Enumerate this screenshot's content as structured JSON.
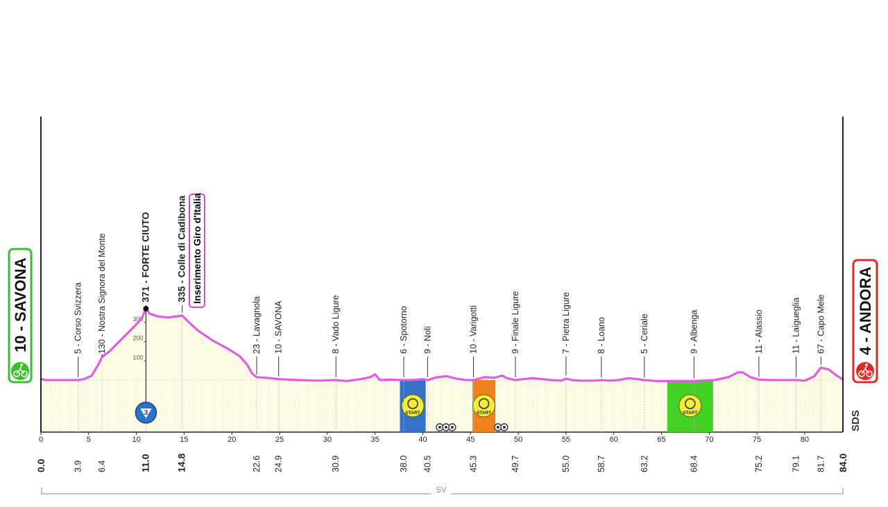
{
  "colors": {
    "profile": "#e25ce3",
    "fill": "#fbfbe6",
    "start_green": "#3cbf2e",
    "finish_red": "#e3282a",
    "sprint_blue": "#3471c8",
    "sprint_orange": "#f0821e",
    "sprint_green": "#43d124",
    "gpm_blue": "#2c73c8"
  },
  "start": {
    "label": "10 - SAVONA",
    "km_label": "0.0"
  },
  "finish": {
    "label": "4 - ANDORA",
    "km_label": "84.0"
  },
  "brand": "SDS",
  "region": "SV",
  "highlight_box": {
    "label": "Inserimento Giro d'Italia"
  },
  "gpm": {
    "category": "3"
  },
  "chart_data": {
    "type": "area",
    "xlim": [
      0,
      84
    ],
    "ylim": [
      0,
      600
    ],
    "x_ticks": [
      "0",
      "5",
      "10",
      "15",
      "20",
      "25",
      "30",
      "35",
      "40",
      "45",
      "50",
      "55",
      "60",
      "65",
      "70",
      "75",
      "80"
    ],
    "y_ticks": [
      "100",
      "200",
      "300"
    ],
    "profile": [
      [
        0,
        5
      ],
      [
        0.5,
        0
      ],
      [
        2,
        0
      ],
      [
        3.9,
        0
      ],
      [
        4.5,
        5
      ],
      [
        5.3,
        22
      ],
      [
        6.0,
        80
      ],
      [
        6.4,
        120
      ],
      [
        7.2,
        150
      ],
      [
        8.0,
        190
      ],
      [
        9.0,
        240
      ],
      [
        10.0,
        290
      ],
      [
        10.6,
        325
      ],
      [
        11.0,
        371
      ],
      [
        11.4,
        345
      ],
      [
        12.3,
        330
      ],
      [
        13.3,
        325
      ],
      [
        14.8,
        335
      ],
      [
        15.5,
        300
      ],
      [
        16.5,
        255
      ],
      [
        18.0,
        205
      ],
      [
        19.5,
        165
      ],
      [
        20.8,
        125
      ],
      [
        21.6,
        80
      ],
      [
        22.1,
        35
      ],
      [
        22.6,
        15
      ],
      [
        24.0,
        10
      ],
      [
        24.9,
        5
      ],
      [
        27.0,
        0
      ],
      [
        29.0,
        -3
      ],
      [
        30.9,
        0
      ],
      [
        32.0,
        -5
      ],
      [
        33.5,
        5
      ],
      [
        34.5,
        15
      ],
      [
        35.0,
        30
      ],
      [
        35.5,
        0
      ],
      [
        36.5,
        2
      ],
      [
        38.0,
        0
      ],
      [
        39.0,
        0
      ],
      [
        40.0,
        5
      ],
      [
        40.5,
        0
      ],
      [
        41.5,
        15
      ],
      [
        42.5,
        20
      ],
      [
        43.5,
        8
      ],
      [
        44.5,
        0
      ],
      [
        45.3,
        0
      ],
      [
        46.5,
        15
      ],
      [
        47.5,
        12
      ],
      [
        48.3,
        23
      ],
      [
        48.8,
        10
      ],
      [
        49.7,
        0
      ],
      [
        50.5,
        5
      ],
      [
        51.5,
        10
      ],
      [
        52.5,
        5
      ],
      [
        53.5,
        0
      ],
      [
        54.5,
        -3
      ],
      [
        55.0,
        8
      ],
      [
        55.6,
        0
      ],
      [
        56.5,
        -3
      ],
      [
        58.0,
        -3
      ],
      [
        58.7,
        0
      ],
      [
        59.5,
        -3
      ],
      [
        60.5,
        0
      ],
      [
        61.5,
        10
      ],
      [
        62.5,
        5
      ],
      [
        63.2,
        0
      ],
      [
        64.5,
        -5
      ],
      [
        66.0,
        -5
      ],
      [
        67.5,
        -5
      ],
      [
        68.4,
        -5
      ],
      [
        70.5,
        0
      ],
      [
        72.0,
        15
      ],
      [
        73.0,
        40
      ],
      [
        73.5,
        40
      ],
      [
        74.3,
        15
      ],
      [
        75.2,
        2
      ],
      [
        76.5,
        0
      ],
      [
        77.5,
        0
      ],
      [
        79.1,
        0
      ],
      [
        80.0,
        -3
      ],
      [
        81.0,
        20
      ],
      [
        81.7,
        65
      ],
      [
        82.5,
        55
      ],
      [
        83.3,
        25
      ],
      [
        84.0,
        3
      ]
    ],
    "waypoints": [
      {
        "km": 3.9,
        "km_label": "3.9",
        "label": "5 - Corso Svizzera",
        "alt": 0
      },
      {
        "km": 6.4,
        "km_label": "6.4",
        "label": "130 - Nostra Signora del Monte",
        "alt": 120
      },
      {
        "km": 11.0,
        "km_label": "11.0",
        "label": "371 - FORTE CIUTO",
        "alt": 371,
        "bold": true
      },
      {
        "km": 14.8,
        "km_label": "14.8",
        "label": "335 - Colle di Cadibona",
        "alt": 335,
        "bold": true
      },
      {
        "km": 22.6,
        "km_label": "22.6",
        "label": "23 - Lavagnola",
        "alt": 15
      },
      {
        "km": 24.9,
        "km_label": "24.9",
        "label": "10 - SAVONA",
        "alt": 5
      },
      {
        "km": 30.9,
        "km_label": "30.9",
        "label": "8 - Vado Ligure",
        "alt": 0
      },
      {
        "km": 38.0,
        "km_label": "38.0",
        "label": "6 - Spotorno",
        "alt": 0
      },
      {
        "km": 40.5,
        "km_label": "40.5",
        "label": "9 - Noli",
        "alt": 0
      },
      {
        "km": 45.3,
        "km_label": "45.3",
        "label": "10 - Varigotti",
        "alt": 0
      },
      {
        "km": 49.7,
        "km_label": "49.7",
        "label": "9 - Finale Ligure",
        "alt": 0
      },
      {
        "km": 55.0,
        "km_label": "55.0",
        "label": "7 - Pietra Ligure",
        "alt": 8
      },
      {
        "km": 58.7,
        "km_label": "58.7",
        "label": "8 - Loano",
        "alt": 0
      },
      {
        "km": 63.2,
        "km_label": "63.2",
        "label": "5 - Ceriale",
        "alt": 0
      },
      {
        "km": 68.4,
        "km_label": "68.4",
        "label": "9 - Albenga",
        "alt": -5
      },
      {
        "km": 75.2,
        "km_label": "75.2",
        "label": "11 - Alassio",
        "alt": 2
      },
      {
        "km": 79.1,
        "km_label": "79.1",
        "label": "11 - Laigueglia",
        "alt": 0
      },
      {
        "km": 81.7,
        "km_label": "81.7",
        "label": "67 - Capo Mele",
        "alt": 65
      }
    ],
    "sprint_zones": [
      {
        "from_km": 37.6,
        "to_km": 40.3,
        "color": "#3471c8",
        "label": "START",
        "icon": "stopwatch"
      },
      {
        "from_km": 45.2,
        "to_km": 47.6,
        "color": "#f0821e",
        "label": "START",
        "icon": "cyclist"
      },
      {
        "from_km": 65.6,
        "to_km": 70.4,
        "color": "#43d124",
        "label": "START",
        "icon": "cyclist"
      }
    ],
    "tunnels_km": [
      [
        42.5,
        3
      ],
      [
        48.6,
        2
      ]
    ]
  }
}
